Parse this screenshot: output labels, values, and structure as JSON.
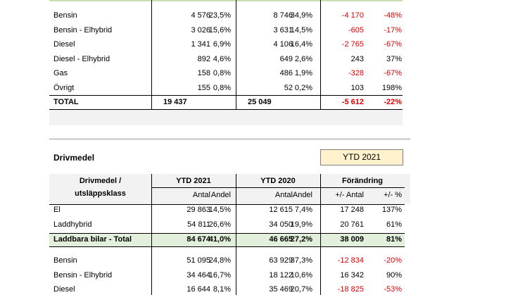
{
  "top_table": {
    "rows": [
      [
        "Bensin",
        "4 576",
        "23,5%",
        "8 746",
        "34,9%",
        "-4 170",
        "-48%"
      ],
      [
        "Bensin - Elhybrid",
        "3 026",
        "15,6%",
        "3 631",
        "14,5%",
        "-605",
        "-17%"
      ],
      [
        "Diesel",
        "1 341",
        "6,9%",
        "4 106",
        "16,4%",
        "-2 765",
        "-67%"
      ],
      [
        "Diesel - Elhybrid",
        "892",
        "4,6%",
        "649",
        "2,6%",
        "243",
        "37%"
      ],
      [
        "Gas",
        "158",
        "0,8%",
        "486",
        "1,9%",
        "-328",
        "-67%"
      ],
      [
        "Övrigt",
        "155",
        "0,8%",
        "52",
        "0,2%",
        "103",
        "198%"
      ]
    ],
    "total": [
      "TOTAL",
      "19 437",
      "",
      "25 049",
      "",
      "-5 612",
      "-22%"
    ]
  },
  "second_table": {
    "title": "Drivmedel",
    "badge": "YTD 2021",
    "header_label": [
      "Drivmedel /",
      "utsläppsklass"
    ],
    "groups": [
      "YTD 2021",
      "YTD 2020",
      "Förändring"
    ],
    "subheaders": [
      "Antal",
      "Andel",
      "Antal",
      "Andel",
      "+/- Antal",
      "+/- %"
    ],
    "rows": [
      [
        "El",
        "29 863",
        "14,5%",
        "12 615",
        "7,4%",
        "17 248",
        "137%"
      ],
      [
        "Laddhybrid",
        "54 811",
        "26,6%",
        "34 050",
        "19,9%",
        "20 761",
        "61%"
      ]
    ],
    "subtotal": [
      "Laddbara bilar - Total",
      "84 674",
      "41,0%",
      "46 665",
      "27,2%",
      "38 009",
      "81%"
    ],
    "rows2": [
      [
        "Bensin",
        "51 095",
        "24,8%",
        "63 929",
        "37,3%",
        "-12 834",
        "-20%"
      ],
      [
        "Bensin - Elhybrid",
        "34 464",
        "16,7%",
        "18 122",
        "10,6%",
        "16 342",
        "90%"
      ],
      [
        "Diesel",
        "16 644",
        "8,1%",
        "35 469",
        "20,7%",
        "-18 825",
        "-53%"
      ]
    ]
  }
}
